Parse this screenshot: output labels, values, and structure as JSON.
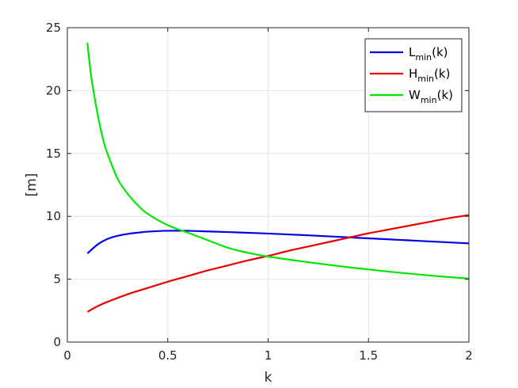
{
  "chart_data": {
    "type": "line",
    "xlabel": "k",
    "ylabel": "[m]",
    "xlim": [
      0,
      2
    ],
    "ylim": [
      0,
      25
    ],
    "xticks": [
      0,
      0.5,
      1,
      1.5,
      2
    ],
    "xtick_labels": [
      "0",
      "0.5",
      "1",
      "1.5",
      "2"
    ],
    "yticks": [
      0,
      5,
      10,
      15,
      20,
      25
    ],
    "ytick_labels": [
      "0",
      "5",
      "10",
      "15",
      "20",
      "25"
    ],
    "grid": true,
    "legend_position": "top-right",
    "series": [
      {
        "name": "L_min(k)",
        "legend_main": "L",
        "legend_sub": "min",
        "legend_suffix": "(k)",
        "color": "#0000e6",
        "x": [
          0.1,
          0.15,
          0.2,
          0.25,
          0.3,
          0.35,
          0.4,
          0.5,
          0.6,
          0.7,
          0.8,
          0.9,
          1.0,
          1.1,
          1.2,
          1.3,
          1.4,
          1.5,
          1.6,
          1.7,
          1.8,
          1.9,
          2.0
        ],
        "y": [
          7.05,
          7.75,
          8.2,
          8.45,
          8.6,
          8.7,
          8.78,
          8.85,
          8.85,
          8.8,
          8.75,
          8.69,
          8.63,
          8.56,
          8.49,
          8.41,
          8.33,
          8.25,
          8.17,
          8.09,
          8.01,
          7.93,
          7.85
        ]
      },
      {
        "name": "H_min(k)",
        "legend_main": "H",
        "legend_sub": "min",
        "legend_suffix": "(k)",
        "color": "#e60000",
        "x": [
          0.1,
          0.15,
          0.2,
          0.3,
          0.4,
          0.5,
          0.6,
          0.7,
          0.8,
          0.9,
          1.0,
          1.1,
          1.2,
          1.3,
          1.4,
          1.5,
          1.6,
          1.7,
          1.8,
          1.9,
          2.0
        ],
        "y": [
          2.4,
          2.85,
          3.2,
          3.8,
          4.3,
          4.8,
          5.25,
          5.7,
          6.1,
          6.5,
          6.85,
          7.25,
          7.6,
          7.95,
          8.3,
          8.65,
          8.95,
          9.25,
          9.55,
          9.85,
          10.1
        ]
      },
      {
        "name": "W_min(k)",
        "legend_main": "W",
        "legend_sub": "min",
        "legend_suffix": "(k)",
        "color": "#00e600",
        "x": [
          0.1,
          0.12,
          0.15,
          0.18,
          0.2,
          0.25,
          0.3,
          0.35,
          0.4,
          0.5,
          0.6,
          0.7,
          0.8,
          0.9,
          1.0,
          1.2,
          1.4,
          1.6,
          1.8,
          2.0
        ],
        "y": [
          23.8,
          21.0,
          18.2,
          16.0,
          15.0,
          13.0,
          11.8,
          10.9,
          10.2,
          9.3,
          8.7,
          8.1,
          7.5,
          7.1,
          6.8,
          6.35,
          5.95,
          5.6,
          5.3,
          5.05
        ]
      }
    ]
  }
}
